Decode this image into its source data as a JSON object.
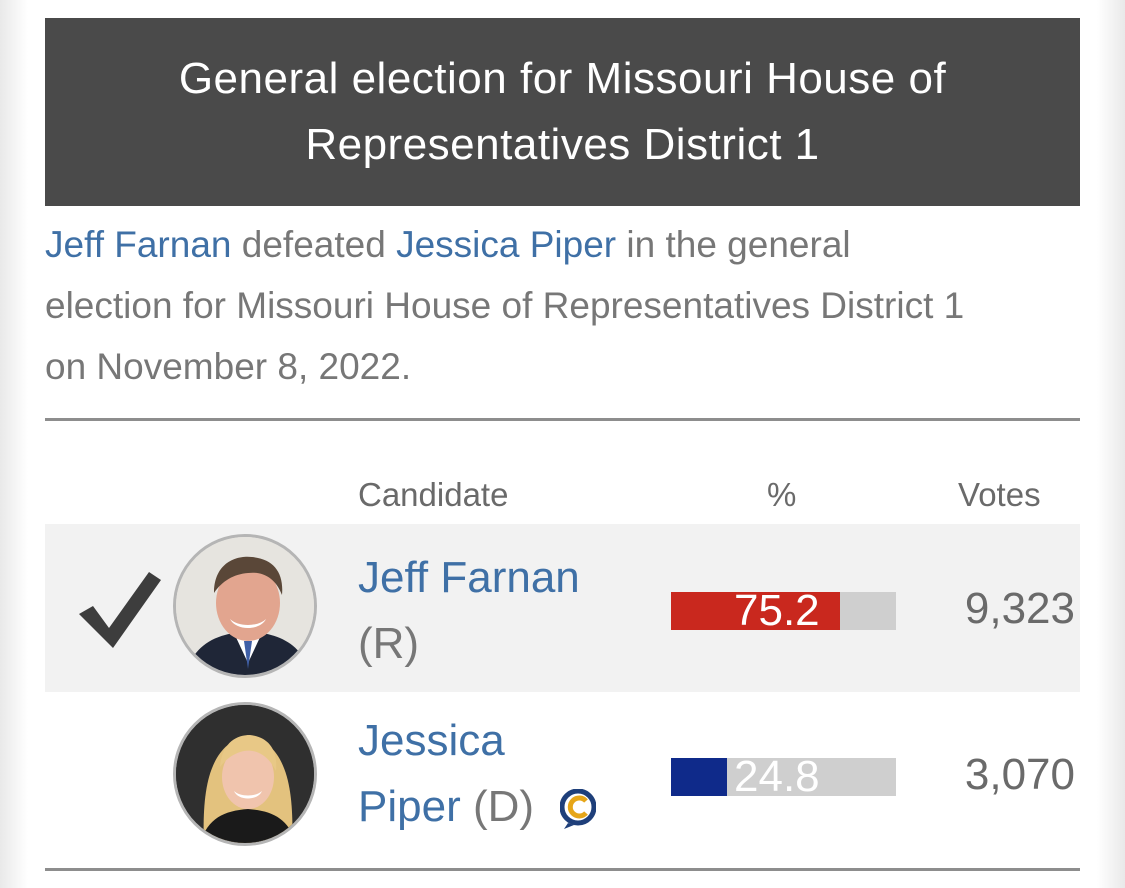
{
  "header": {
    "title": "General election for Missouri House of Representatives District 1"
  },
  "summary": {
    "winner": "Jeff Farnan",
    "verb": " defeated ",
    "loser": "Jessica Piper",
    "rest": " in the general election for Missouri House of Representatives District 1 on November 8, 2022."
  },
  "table": {
    "headers": {
      "candidate": "Candidate",
      "percent": "%",
      "votes": "Votes"
    },
    "rows": [
      {
        "name": "Jeff Farnan",
        "party": "(R)",
        "percent": "75.2",
        "percent_value": 75.2,
        "votes": "9,323",
        "winner": true,
        "bar_color": "#c9281e",
        "icon": "checkmark-icon"
      },
      {
        "name_line1": "Jessica",
        "name_line2": "Piper",
        "party": "(D)",
        "percent": "24.8",
        "percent_value": 24.8,
        "votes": "3,070",
        "winner": false,
        "bar_color": "#0f2a8a",
        "icon": "candidate-connection-icon"
      }
    ]
  },
  "colors": {
    "header_bg": "#4a4a4a",
    "link": "#3f70a6",
    "republican": "#c9281e",
    "democrat": "#0f2a8a",
    "row_shade": "#f2f2f2"
  }
}
